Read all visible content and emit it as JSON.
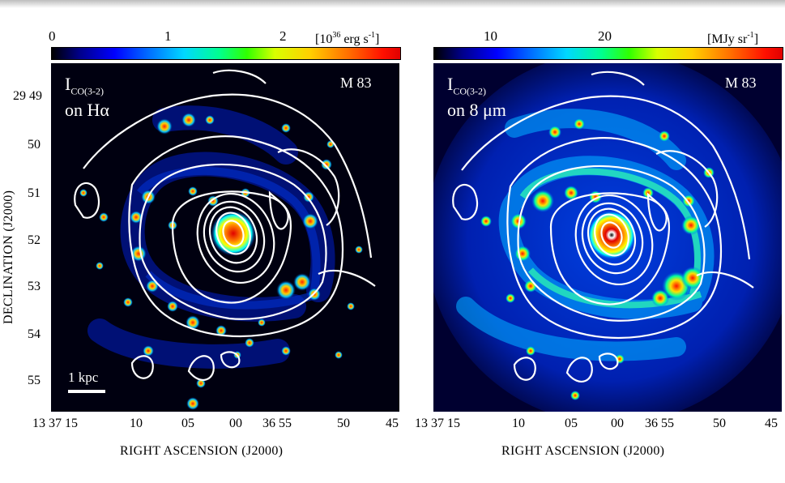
{
  "left_panel": {
    "colorbar": {
      "ticks": [
        "0",
        "1",
        "2"
      ],
      "unit_base": "[10",
      "unit_exp": "36",
      "unit_rest": " erg s",
      "unit_exp2": "-1",
      "unit_close": "]"
    },
    "label_main": "I",
    "label_sub": "CO(3-2)",
    "label_line2": "on Hα",
    "galaxy": "M 83",
    "scale_bar_label": "1 kpc",
    "ra_ticks": [
      "13 37 15",
      "10",
      "05",
      "00",
      "36 55",
      "50",
      "45"
    ],
    "ra_title": "RIGHT ASCENSION (J2000)"
  },
  "right_panel": {
    "colorbar": {
      "ticks": [
        "10",
        "20"
      ],
      "unit_base": "[MJy sr",
      "unit_exp": "-1",
      "unit_close": "]"
    },
    "label_main": "I",
    "label_sub": "CO(3-2)",
    "label_line2": "on 8 μm",
    "galaxy": "M 83",
    "ra_ticks": [
      "13 37 15",
      "10",
      "05",
      "00",
      "36 55",
      "50",
      "45"
    ],
    "ra_title": "RIGHT ASCENSION (J2000)"
  },
  "dec_axis": {
    "ticks": [
      "29 49",
      "50",
      "51",
      "52",
      "53",
      "54",
      "55"
    ],
    "title": "DECLINATION (J2000)"
  }
}
